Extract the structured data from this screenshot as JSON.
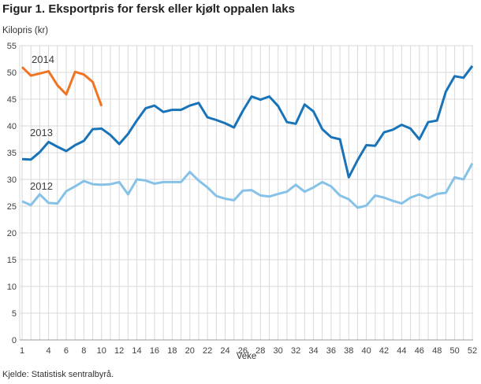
{
  "title": "Figur 1. Eksportpris for fersk eller kjølt oppalen laks",
  "source": "Kjelde: Statistisk sentralbyrå.",
  "chart_data": {
    "type": "line",
    "title": "Figur 1. Eksportpris for fersk eller kjølt oppalen laks",
    "ylabel": "Kilopris (kr)",
    "xlabel": "Veke",
    "ylim": [
      0,
      55
    ],
    "ytick_step": 5,
    "xlim": [
      1,
      52
    ],
    "xticks": [
      1,
      4,
      6,
      8,
      10,
      12,
      14,
      16,
      18,
      20,
      22,
      24,
      26,
      28,
      30,
      32,
      34,
      36,
      38,
      40,
      42,
      44,
      46,
      48,
      50,
      52
    ],
    "grid": true,
    "legend_position": "inline-labels",
    "colors": {
      "grid": "#d9d9d9",
      "axis": "#9b9b9b",
      "text": "#404040"
    },
    "series": [
      {
        "name": "2014",
        "color": "#ef7524",
        "start_week": 1,
        "values": [
          51.0,
          49.4,
          49.8,
          50.2,
          47.6,
          45.9,
          50.1,
          49.6,
          48.2,
          43.7
        ]
      },
      {
        "name": "2013",
        "color": "#1873b8",
        "start_week": 1,
        "values": [
          33.8,
          33.7,
          35.1,
          37.0,
          36.1,
          35.3,
          36.4,
          37.2,
          39.4,
          39.5,
          38.3,
          36.6,
          38.5,
          41.0,
          43.3,
          43.8,
          42.6,
          43.0,
          43.0,
          43.8,
          44.3,
          41.6,
          41.1,
          40.5,
          39.7,
          42.8,
          45.5,
          44.9,
          45.5,
          43.7,
          40.7,
          40.4,
          44.0,
          42.7,
          39.4,
          37.9,
          37.5,
          30.4,
          33.6,
          36.4,
          36.3,
          38.8,
          39.3,
          40.2,
          39.5,
          37.5,
          40.7,
          41.0,
          46.4,
          49.3,
          49.0,
          51.2
        ]
      },
      {
        "name": "2012",
        "color": "#86c2e7",
        "start_week": 1,
        "values": [
          25.9,
          25.2,
          27.2,
          25.6,
          25.5,
          27.8,
          28.7,
          29.7,
          29.1,
          29.0,
          29.1,
          29.5,
          27.2,
          30.0,
          29.8,
          29.2,
          29.5,
          29.5,
          29.5,
          31.4,
          29.8,
          28.5,
          26.9,
          26.4,
          26.1,
          27.9,
          28.0,
          27.0,
          26.8,
          27.3,
          27.7,
          29.0,
          27.7,
          28.5,
          29.5,
          28.7,
          27.0,
          26.3,
          24.7,
          25.1,
          27.0,
          26.6,
          26.0,
          25.5,
          26.6,
          27.2,
          26.5,
          27.3,
          27.5,
          30.4,
          30.0,
          33.0
        ]
      }
    ]
  }
}
